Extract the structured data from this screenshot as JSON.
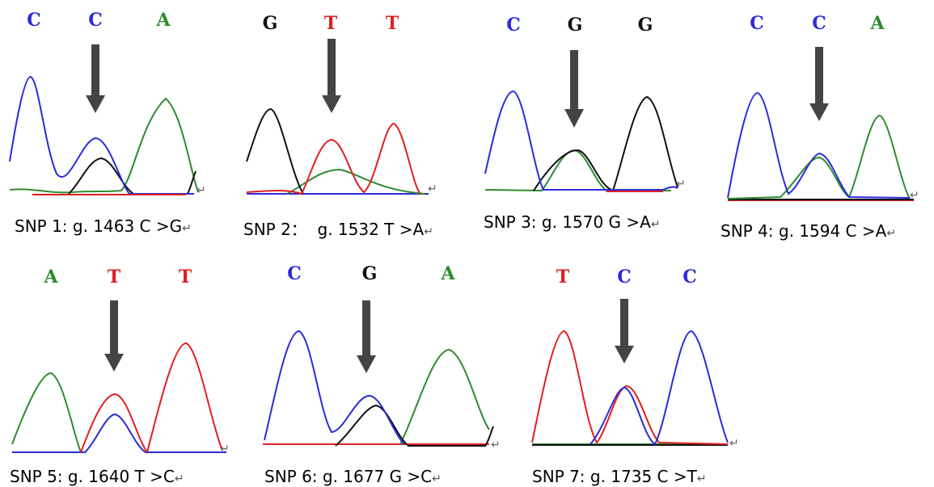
{
  "colors": {
    "A": "#2e8b2e",
    "C": "#2b2bd9",
    "G": "#111111",
    "T": "#e02020",
    "arrow": "#444444",
    "baseline": "#8a2b2b"
  },
  "return_mark": "↵",
  "panels": [
    {
      "id": "snp1",
      "bases": [
        "C",
        "C",
        "A"
      ],
      "caption": "SNP 1: g. 1463 C >G"
    },
    {
      "id": "snp2",
      "bases": [
        "G",
        "T",
        "T"
      ],
      "caption": "SNP 2：  g. 1532 T >A"
    },
    {
      "id": "snp3",
      "bases": [
        "C",
        "G",
        "G"
      ],
      "caption": "SNP 3: g. 1570 G >A"
    },
    {
      "id": "snp4",
      "bases": [
        "C",
        "C",
        "A"
      ],
      "caption": "SNP 4: g. 1594 C >A"
    },
    {
      "id": "snp5",
      "bases": [
        "A",
        "T",
        "T"
      ],
      "caption": "SNP 5: g. 1640 T >C"
    },
    {
      "id": "snp6",
      "bases": [
        "C",
        "G",
        "A"
      ],
      "caption": "SNP 6: g. 1677 G >C"
    },
    {
      "id": "snp7",
      "bases": [
        "T",
        "C",
        "C"
      ],
      "caption": "SNP 7: g. 1735 C >T"
    }
  ]
}
